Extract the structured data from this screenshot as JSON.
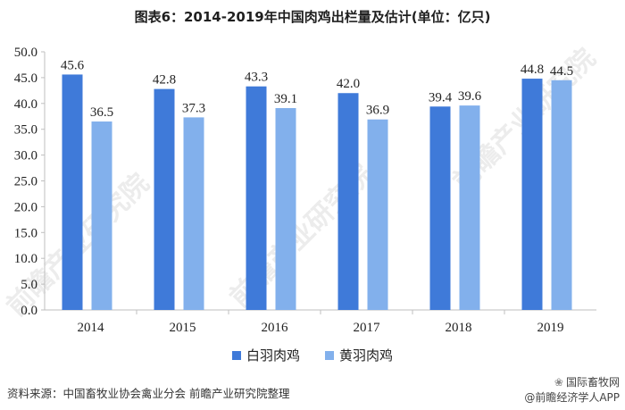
{
  "title": "图表6：2014-2019年中国肉鸡出栏量及估计(单位：亿只)",
  "colors": {
    "series1": "#3F7AD9",
    "series2": "#82B0EC",
    "axis": "#bfbfbf"
  },
  "chart_data": {
    "type": "bar",
    "title": "图表6：2014-2019年中国肉鸡出栏量及估计(单位：亿只)",
    "categories": [
      "2014",
      "2015",
      "2016",
      "2017",
      "2018",
      "2019"
    ],
    "series": [
      {
        "name": "白羽肉鸡",
        "values": [
          45.6,
          42.8,
          43.3,
          42.0,
          39.4,
          44.8
        ],
        "labels": [
          "45.6",
          "42.8",
          "43.3",
          "42.0",
          "39.4",
          "44.8"
        ]
      },
      {
        "name": "黄羽肉鸡",
        "values": [
          36.5,
          37.3,
          39.1,
          36.9,
          39.6,
          44.5
        ],
        "labels": [
          "36.5",
          "37.3",
          "39.1",
          "36.9",
          "39.6",
          "44.5"
        ]
      }
    ],
    "yticks": [
      "0.0",
      "5.0",
      "10.0",
      "15.0",
      "20.0",
      "25.0",
      "30.0",
      "35.0",
      "40.0",
      "45.0",
      "50.0"
    ],
    "ylim": [
      0,
      50
    ],
    "grid": false,
    "legend": "bottom"
  },
  "source": "资料来源：中国畜牧业协会禽业分会 前瞻产业研究院整理",
  "badge": {
    "line1": "国际畜牧网",
    "line2": "@前瞻经济学人APP"
  },
  "watermark": "前瞻产业研究院"
}
